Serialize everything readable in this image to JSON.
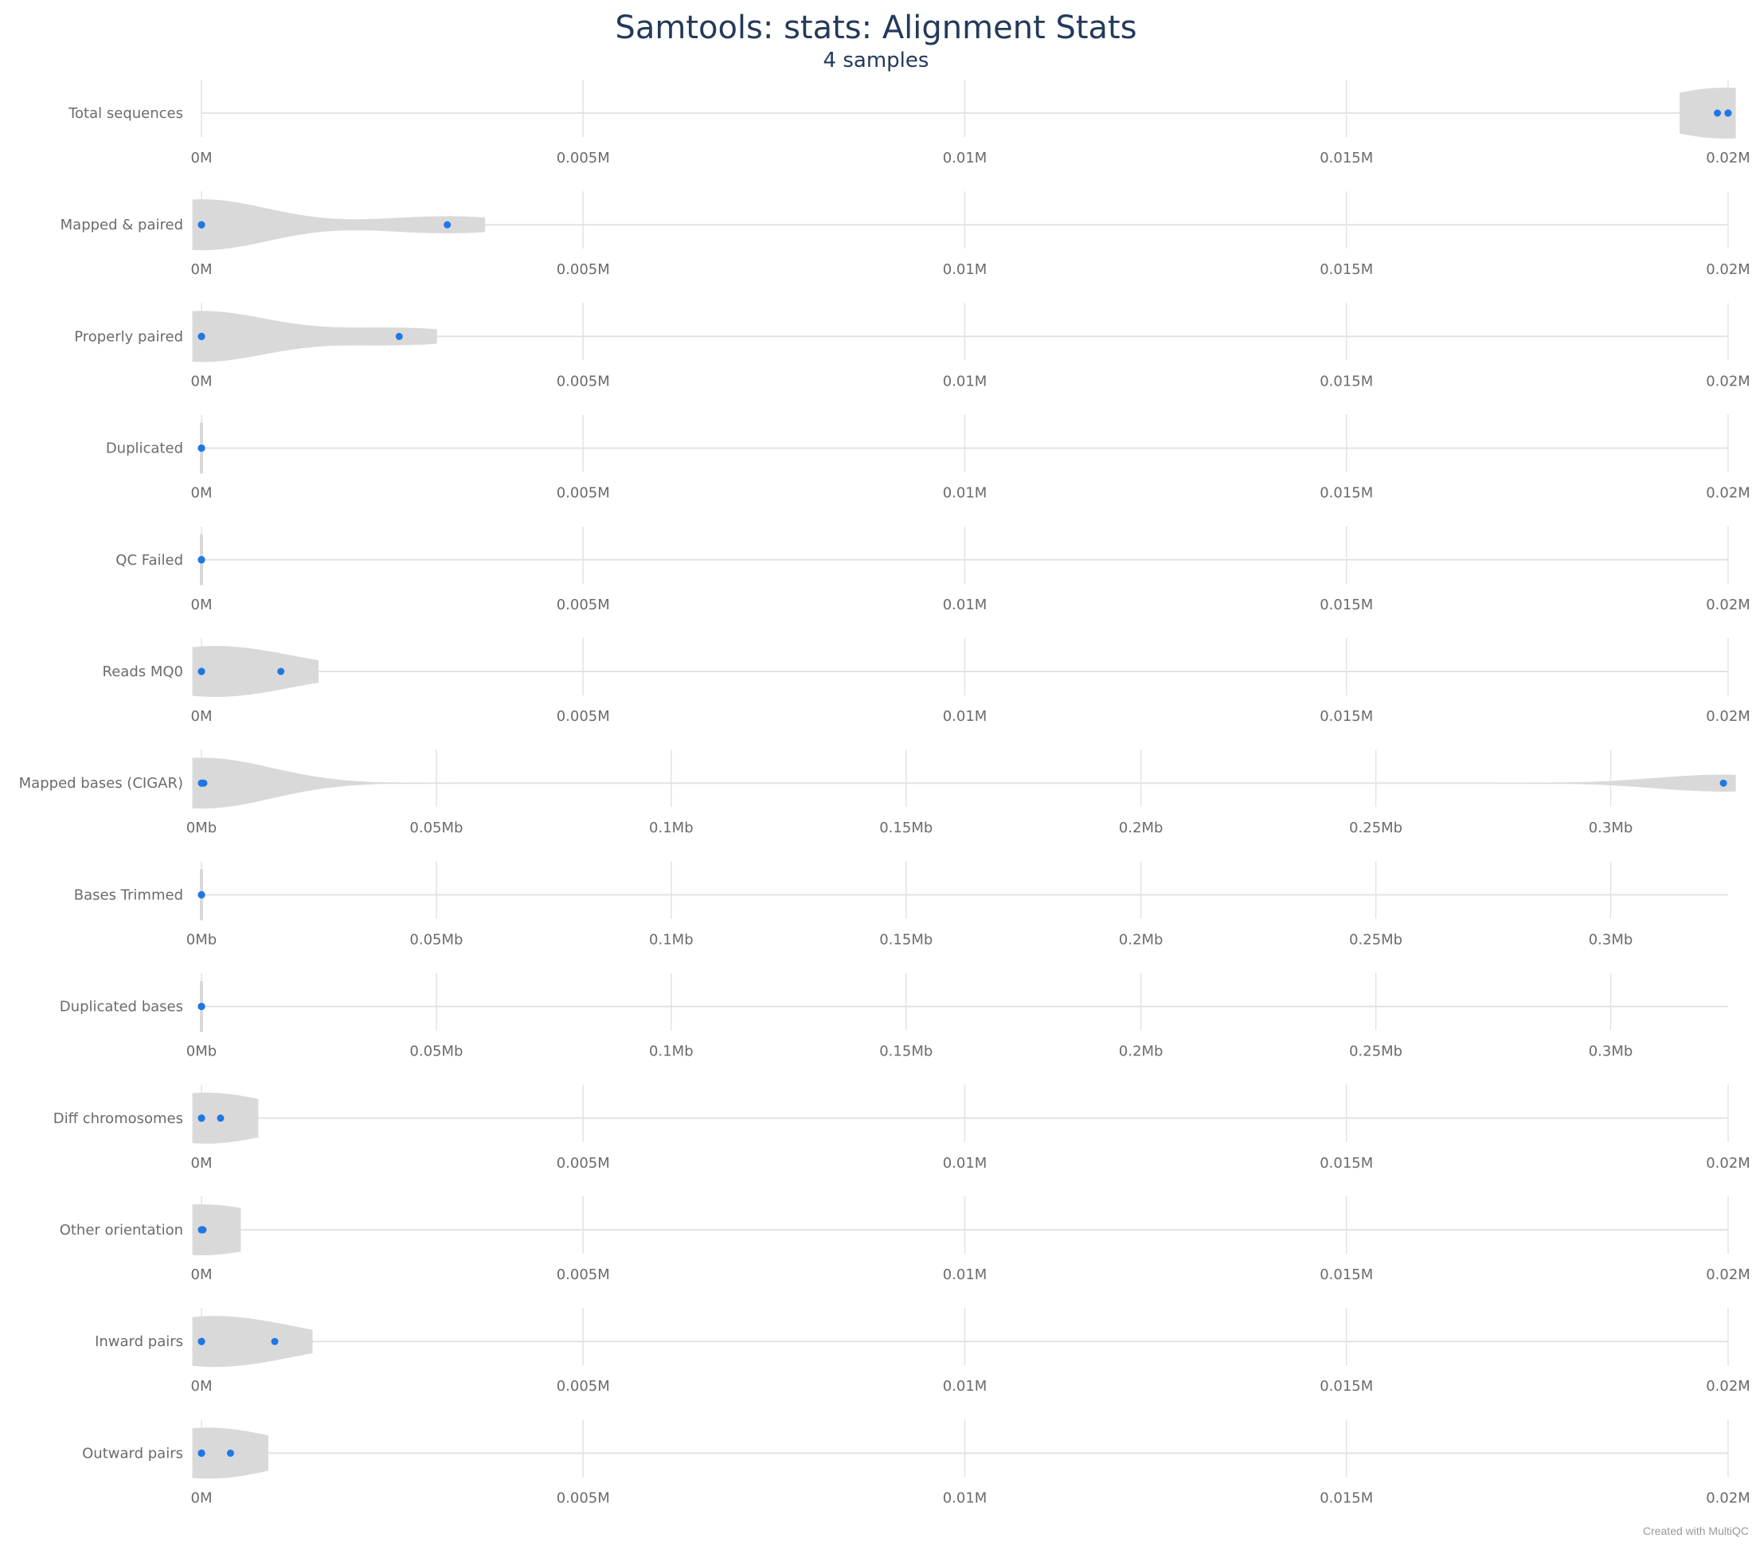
{
  "title": "Samtools: stats: Alignment Stats",
  "subtitle": "4 samples",
  "credit": "Created with MultiQC",
  "colors": {
    "point": "#1f77e5",
    "violin": "#d9d9d9",
    "grid": "#e3e3e3",
    "text": "#6b6b6b",
    "title": "#233a5a"
  },
  "chart_data": {
    "type": "violin",
    "title": "Samtools: stats: Alignment Stats",
    "subtitle": "4 samples",
    "rows": [
      {
        "label": "Total sequences",
        "unit": "M",
        "xlim": [
          0,
          0.02
        ],
        "ticks": [
          0,
          0.005,
          0.01,
          0.015,
          0.02
        ],
        "tick_labels": [
          "0M",
          "0.005M",
          "0.01M",
          "0.015M",
          "0.02M"
        ],
        "points": [
          0.01986,
          0.02,
          0.02,
          0.02
        ]
      },
      {
        "label": "Mapped & paired",
        "unit": "M",
        "xlim": [
          0,
          0.02
        ],
        "ticks": [
          0,
          0.005,
          0.01,
          0.015,
          0.02
        ],
        "tick_labels": [
          "0M",
          "0.005M",
          "0.01M",
          "0.015M",
          "0.02M"
        ],
        "points": [
          0,
          0,
          0,
          0.00322
        ]
      },
      {
        "label": "Properly paired",
        "unit": "M",
        "xlim": [
          0,
          0.02
        ],
        "ticks": [
          0,
          0.005,
          0.01,
          0.015,
          0.02
        ],
        "tick_labels": [
          "0M",
          "0.005M",
          "0.01M",
          "0.015M",
          "0.02M"
        ],
        "points": [
          0,
          0,
          0,
          0.00259
        ]
      },
      {
        "label": "Duplicated",
        "unit": "M",
        "xlim": [
          0,
          0.02
        ],
        "ticks": [
          0,
          0.005,
          0.01,
          0.015,
          0.02
        ],
        "tick_labels": [
          "0M",
          "0.005M",
          "0.01M",
          "0.015M",
          "0.02M"
        ],
        "points": [
          0,
          0,
          0,
          0
        ]
      },
      {
        "label": "QC Failed",
        "unit": "M",
        "xlim": [
          0,
          0.02
        ],
        "ticks": [
          0,
          0.005,
          0.01,
          0.015,
          0.02
        ],
        "tick_labels": [
          "0M",
          "0.005M",
          "0.01M",
          "0.015M",
          "0.02M"
        ],
        "points": [
          0,
          0,
          0,
          0
        ]
      },
      {
        "label": "Reads MQ0",
        "unit": "M",
        "xlim": [
          0,
          0.02
        ],
        "ticks": [
          0,
          0.005,
          0.01,
          0.015,
          0.02
        ],
        "tick_labels": [
          "0M",
          "0.005M",
          "0.01M",
          "0.015M",
          "0.02M"
        ],
        "points": [
          0,
          0,
          0,
          0.00104
        ]
      },
      {
        "label": "Mapped bases (CIGAR)",
        "unit": "Mb",
        "xlim": [
          0,
          0.325
        ],
        "ticks": [
          0,
          0.05,
          0.1,
          0.15,
          0.2,
          0.25,
          0.3
        ],
        "tick_labels": [
          "0Mb",
          "0.05Mb",
          "0.1Mb",
          "0.15Mb",
          "0.2Mb",
          "0.25Mb",
          "0.3Mb"
        ],
        "points": [
          0,
          0,
          0.0005,
          0.324
        ]
      },
      {
        "label": "Bases Trimmed",
        "unit": "Mb",
        "xlim": [
          0,
          0.325
        ],
        "ticks": [
          0,
          0.05,
          0.1,
          0.15,
          0.2,
          0.25,
          0.3
        ],
        "tick_labels": [
          "0Mb",
          "0.05Mb",
          "0.1Mb",
          "0.15Mb",
          "0.2Mb",
          "0.25Mb",
          "0.3Mb"
        ],
        "points": [
          0,
          0,
          0,
          0
        ]
      },
      {
        "label": "Duplicated bases",
        "unit": "Mb",
        "xlim": [
          0,
          0.325
        ],
        "ticks": [
          0,
          0.05,
          0.1,
          0.15,
          0.2,
          0.25,
          0.3
        ],
        "tick_labels": [
          "0Mb",
          "0.05Mb",
          "0.1Mb",
          "0.15Mb",
          "0.2Mb",
          "0.25Mb",
          "0.3Mb"
        ],
        "points": [
          0,
          0,
          0,
          0
        ]
      },
      {
        "label": "Diff chromosomes",
        "unit": "M",
        "xlim": [
          0,
          0.02
        ],
        "ticks": [
          0,
          0.005,
          0.01,
          0.015,
          0.02
        ],
        "tick_labels": [
          "0M",
          "0.005M",
          "0.01M",
          "0.015M",
          "0.02M"
        ],
        "points": [
          0,
          0,
          0,
          0.00025
        ]
      },
      {
        "label": "Other orientation",
        "unit": "M",
        "xlim": [
          0,
          0.02
        ],
        "ticks": [
          0,
          0.005,
          0.01,
          0.015,
          0.02
        ],
        "tick_labels": [
          "0M",
          "0.005M",
          "0.01M",
          "0.015M",
          "0.02M"
        ],
        "points": [
          0,
          0,
          0,
          2e-05
        ]
      },
      {
        "label": "Inward pairs",
        "unit": "M",
        "xlim": [
          0,
          0.02
        ],
        "ticks": [
          0,
          0.005,
          0.01,
          0.015,
          0.02
        ],
        "tick_labels": [
          "0M",
          "0.005M",
          "0.01M",
          "0.015M",
          "0.02M"
        ],
        "points": [
          0,
          0,
          0,
          0.00096
        ]
      },
      {
        "label": "Outward pairs",
        "unit": "M",
        "xlim": [
          0,
          0.02
        ],
        "ticks": [
          0,
          0.005,
          0.01,
          0.015,
          0.02
        ],
        "tick_labels": [
          "0M",
          "0.005M",
          "0.01M",
          "0.015M",
          "0.02M"
        ],
        "points": [
          0,
          0,
          0,
          0.00038
        ]
      }
    ]
  }
}
